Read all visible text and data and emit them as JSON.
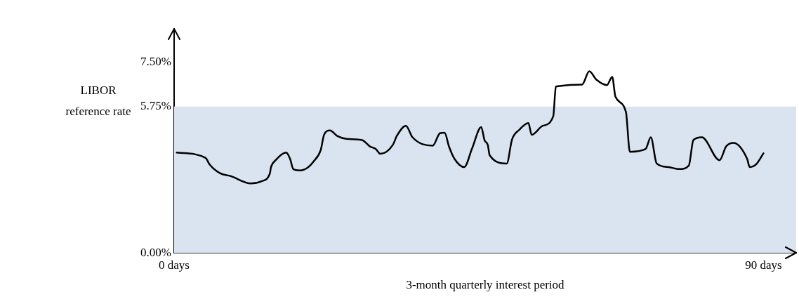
{
  "chart_data": {
    "type": "line",
    "xlabel": "3-month quarterly interest period",
    "ylabel": "LIBOR reference rate",
    "x": [
      0.4,
      4.8,
      5.4,
      7.0,
      8.6,
      11.7,
      13.3,
      14.6,
      14.8,
      15.5,
      17.1,
      17.7,
      18.2,
      19.2,
      20.4,
      21.3,
      22.4,
      22.9,
      23.8,
      24.9,
      26.3,
      28.7,
      29.9,
      30.8,
      31.5,
      33.4,
      34.0,
      35.4,
      36.4,
      39.5,
      40.6,
      41.3,
      42.0,
      42.8,
      44.3,
      45.5,
      46.9,
      47.4,
      47.9,
      48.2,
      50.8,
      51.6,
      52.7,
      54.1,
      54.6,
      56.3,
      57.9,
      58.3,
      62.3,
      63.4,
      64.5,
      66.1,
      66.9,
      67.4,
      69.0,
      69.6,
      72.0,
      72.8,
      73.7,
      75.5,
      77.1,
      78.6,
      79.3,
      80.6,
      83.3,
      84.3,
      85.4,
      87.5,
      87.9,
      88.9,
      90.0
    ],
    "series": [
      {
        "color": "#000000",
        "values": [
          3.94,
          3.73,
          3.48,
          3.13,
          3.02,
          2.73,
          2.81,
          3.1,
          3.37,
          3.64,
          3.94,
          3.7,
          3.29,
          3.24,
          3.35,
          3.59,
          4.05,
          4.64,
          4.81,
          4.59,
          4.48,
          4.43,
          4.18,
          4.08,
          3.89,
          4.24,
          4.59,
          4.99,
          4.54,
          4.21,
          4.7,
          4.72,
          4.16,
          3.7,
          3.37,
          4.1,
          4.94,
          4.43,
          4.24,
          3.83,
          3.51,
          4.45,
          4.83,
          5.1,
          4.64,
          4.99,
          5.37,
          6.53,
          6.61,
          7.13,
          6.8,
          6.59,
          6.91,
          6.13,
          5.53,
          3.97,
          4.08,
          4.54,
          3.51,
          3.37,
          3.29,
          3.43,
          4.43,
          4.54,
          3.64,
          4.18,
          4.32,
          3.7,
          3.37,
          3.48,
          3.91
        ]
      }
    ],
    "xlim": [
      0,
      95
    ],
    "ylim": [
      0,
      8.8
    ],
    "xticks": [
      {
        "value": 0,
        "label": "0 days"
      },
      {
        "value": 90,
        "label": "90 days"
      }
    ],
    "yticks": [
      {
        "value": 0,
        "label": "0.00%"
      },
      {
        "value": 5.75,
        "label": "5.75%"
      },
      {
        "value": 7.5,
        "label": "7.50%"
      }
    ],
    "bands": [
      {
        "axis": "y",
        "from": 0,
        "to": 5.75,
        "color": "#dae3f0"
      }
    ],
    "marker": "none",
    "line_style": "solid"
  }
}
